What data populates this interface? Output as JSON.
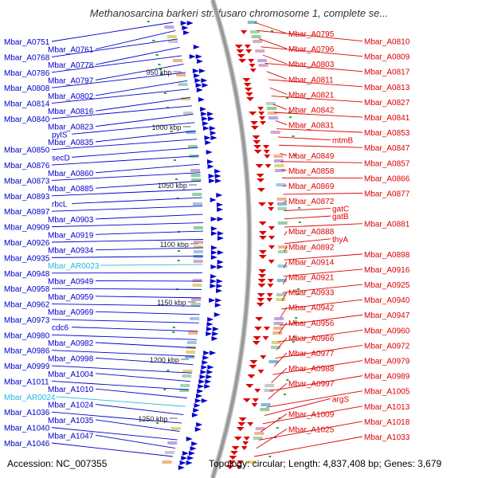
{
  "title": "Methanosarcina barkeri str. fusaro chromosome 1, complete se...",
  "accession": "Accession: NC_007355",
  "topology": "Topology: circular; Length: 4,837,408 bp; Genes: 3,679",
  "colors": {
    "plus_strand": "#0000cc",
    "minus_strand": "#dd0000",
    "rna": "#22bbdd",
    "backbone": "#999999"
  },
  "ticks": [
    "950 kbp",
    "1000 kbp",
    "1050 kbp",
    "1100 kbp",
    "1150 kbp",
    "1200 kbp",
    "1250 kbp"
  ],
  "left_labels": [
    "Mbar_A0751",
    "Mbar_A0761",
    "Mbar_A0768",
    "Mbar_A0778",
    "Mbar_A0786",
    "Mbar_A0797",
    "Mbar_A0808",
    "Mbar_A0802",
    "Mbar_A0814",
    "Mbar_A0816",
    "Mbar_A0840",
    "Mbar_A0823",
    "pylS",
    "Mbar_A0835",
    "Mbar_A0850",
    "secD",
    "Mbar_A0876",
    "Mbar_A0860",
    "Mbar_A0873",
    "Mbar_A0885",
    "Mbar_A0893",
    "rbcL",
    "Mbar_A0897",
    "Mbar_A0903",
    "Mbar_A0909",
    "Mbar_A0919",
    "Mbar_A0926",
    "Mbar_A0934",
    "Mbar_A0935",
    "Mbar_AR0023",
    "Mbar_A0948",
    "Mbar_A0949",
    "Mbar_A0958",
    "Mbar_A0959",
    "Mbar_A0962",
    "Mbar_A0969",
    "Mbar_A0973",
    "cdc6",
    "Mbar_A0980",
    "Mbar_A0982",
    "Mbar_A0986",
    "Mbar_A0998",
    "Mbar_A0999",
    "Mbar_A1004",
    "Mbar_A1011",
    "Mbar_A1010",
    "Mbar_AR0024",
    "Mbar_A1024",
    "Mbar_A1036",
    "Mbar_A1035",
    "Mbar_A1040",
    "Mbar_A1047",
    "Mbar_A1046"
  ],
  "right_labels": [
    "Mbar_A0795",
    "Mbar_A0810",
    "Mbar_A0796",
    "Mbar_A0809",
    "Mbar_A0803",
    "Mbar_A0817",
    "Mbar_A0811",
    "Mbar_A0813",
    "Mbar_A0821",
    "Mbar_A0827",
    "Mbar_A0842",
    "Mbar_A0841",
    "Mbar_A0831",
    "Mbar_A0853",
    "mtmB",
    "Mbar_A0847",
    "Mbar_A0849",
    "Mbar_A0857",
    "Mbar_A0858",
    "Mbar_A0866",
    "Mbar_A0869",
    "Mbar_A0877",
    "Mbar_A0872",
    "gatC",
    "gatB",
    "Mbar_A0881",
    "Mbar_A0888",
    "thyA",
    "Mbar_A0892",
    "Mbar_A0898",
    "Mbar_A0914",
    "Mbar_A0916",
    "Mbar_A0921",
    "Mbar_A0925",
    "Mbar_A0933",
    "Mbar_A0940",
    "Mbar_A0942",
    "Mbar_A0947",
    "Mbar_A0956",
    "Mbar_A0960",
    "Mbar_A0966",
    "Mbar_A0972",
    "Mbar_A0977",
    "Mbar_A0979",
    "Mbar_A0988",
    "Mbar_A0989",
    "Mbar_A0997",
    "Mbar_A1005",
    "argS",
    "Mbar_A1013",
    "Mbar_A1009",
    "Mbar_A1018",
    "Mbar_A1025",
    "Mbar_A1033"
  ]
}
